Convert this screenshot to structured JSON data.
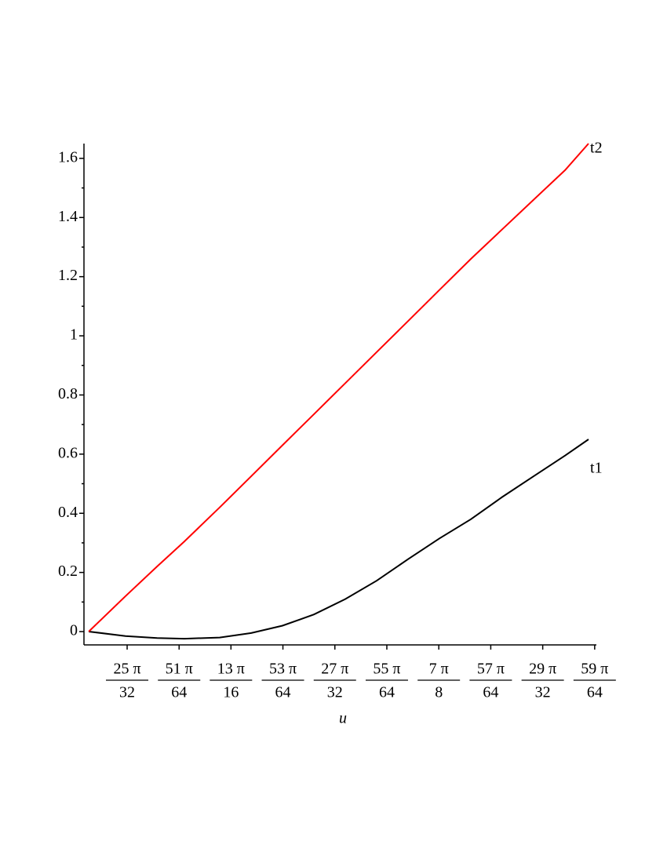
{
  "chart_data": {
    "type": "line",
    "x_label": "u",
    "x": [
      2.4181,
      2.4529,
      2.4826,
      2.5085,
      2.5419,
      2.5716,
      2.6012,
      2.6309,
      2.6605,
      2.6902,
      2.7199,
      2.7495,
      2.7792,
      2.8088,
      2.8385,
      2.8682,
      2.8904
    ],
    "series": [
      {
        "name": "t1",
        "color": "#000000",
        "values": [
          0,
          -0.015,
          -0.022,
          -0.024,
          -0.02,
          -0.005,
          0.02,
          0.058,
          0.11,
          0.172,
          0.245,
          0.315,
          0.38,
          0.455,
          0.525,
          0.595,
          0.65
        ]
      },
      {
        "name": "t2",
        "color": "#ff0000",
        "values": [
          0,
          0.12,
          0.22,
          0.305,
          0.42,
          0.525,
          0.63,
          0.735,
          0.84,
          0.945,
          1.05,
          1.155,
          1.26,
          1.36,
          1.46,
          1.56,
          1.65
        ]
      }
    ],
    "xlim": [
      2.4136,
      2.8978
    ],
    "ylim": [
      -0.045,
      1.65
    ],
    "yticks": [
      0,
      0.2,
      0.4,
      0.6,
      0.8,
      1,
      1.2,
      1.4,
      1.6
    ],
    "yminorticks": [
      0.1,
      0.3,
      0.5,
      0.7,
      0.9,
      1.1,
      1.3,
      1.5
    ],
    "xticks": [
      {
        "value": 2.4544,
        "numerator": "25 π",
        "denominator": "32"
      },
      {
        "value": 2.5035,
        "numerator": "51 π",
        "denominator": "64"
      },
      {
        "value": 2.5525,
        "numerator": "13 π",
        "denominator": "16"
      },
      {
        "value": 2.6016,
        "numerator": "53 π",
        "denominator": "64"
      },
      {
        "value": 2.6507,
        "numerator": "27 π",
        "denominator": "32"
      },
      {
        "value": 2.6998,
        "numerator": "55 π",
        "denominator": "64"
      },
      {
        "value": 2.7489,
        "numerator": "7 π",
        "denominator": "8"
      },
      {
        "value": 2.798,
        "numerator": "57 π",
        "denominator": "64"
      },
      {
        "value": 2.8471,
        "numerator": "29 π",
        "denominator": "32"
      },
      {
        "value": 2.8962,
        "numerator": "59 π",
        "denominator": "64"
      }
    ]
  }
}
